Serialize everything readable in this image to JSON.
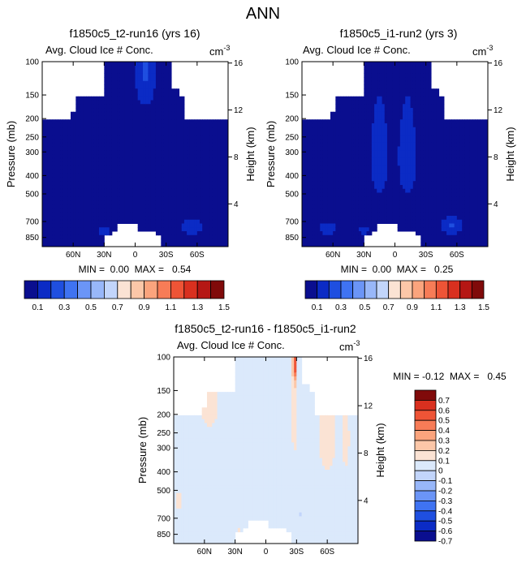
{
  "page": {
    "title": "ANN"
  },
  "colors": {
    "background_white": "#ffffff",
    "abs_scale": [
      "#0a0e8f",
      "#0b2bc5",
      "#1f4fe0",
      "#3f73f2",
      "#6b95f7",
      "#98b7f9",
      "#c2d5fb",
      "#fbe3d4",
      "#fcc7a8",
      "#fba47d",
      "#f77c57",
      "#ee5436",
      "#d9301f",
      "#b51714",
      "#800a0a"
    ],
    "diff_scale": [
      "#0a0e8f",
      "#0b2bc5",
      "#1f4fe0",
      "#3f73f2",
      "#6b95f7",
      "#98b7f9",
      "#c2d5fb",
      "#dbe9fb",
      "#fbe3d4",
      "#fcc7a8",
      "#fba47d",
      "#f77c57",
      "#ee5436",
      "#d9301f",
      "#800a0a"
    ]
  },
  "chart_data": [
    {
      "id": "panel-run16",
      "type": "heatmap",
      "title": "f1850c5_t2-run16 (yrs 16)",
      "subtitle": "Avg. Cloud Ice # Conc.",
      "unit_label": "cm",
      "unit_exp": "-3",
      "ylabel": "Pressure (mb)",
      "y2label": "Height (km)",
      "x_ticks": [
        "60N",
        "30N",
        "0",
        "30S",
        "60S"
      ],
      "x_tick_values": [
        60,
        30,
        0,
        -30,
        -60
      ],
      "xlim": [
        90,
        -90
      ],
      "y_ticks": [
        "100",
        "150",
        "200",
        "250",
        "300",
        "400",
        "500",
        "700",
        "850"
      ],
      "y_tick_values": [
        100,
        150,
        200,
        250,
        300,
        400,
        500,
        700,
        850
      ],
      "ylim": [
        100,
        950
      ],
      "y2_ticks": [
        "16",
        "12",
        "8",
        "4"
      ],
      "y2_tick_values": [
        16,
        12,
        8,
        4
      ],
      "stats_text": "MIN =  0.00  MAX =   0.54",
      "min": 0.0,
      "max": 0.54,
      "background_level": 0.05,
      "features": [
        {
          "lat": -10,
          "p": 105,
          "dlat": 9,
          "dp": 60,
          "value": 0.22
        },
        {
          "lat": -55,
          "p": 750,
          "dlat": 9,
          "dp": 70,
          "value": 0.2
        },
        {
          "lat": 30,
          "p": 780,
          "dlat": 5,
          "dp": 45,
          "value": 0.18
        }
      ],
      "legend_labels": [
        "0.1",
        "0.3",
        "0.5",
        "0.7",
        "0.9",
        "1.1",
        "1.3",
        "1.5"
      ]
    },
    {
      "id": "panel-run2",
      "type": "heatmap",
      "title": "f1850c5_i1-run2 (yrs 3)",
      "subtitle": "Avg. Cloud Ice # Conc.",
      "unit_label": "cm",
      "unit_exp": "-3",
      "ylabel": "Pressure (mb)",
      "y2label": "Height (km)",
      "x_ticks": [
        "60N",
        "30N",
        "0",
        "30S",
        "60S"
      ],
      "x_tick_values": [
        60,
        30,
        0,
        -30,
        -60
      ],
      "xlim": [
        90,
        -90
      ],
      "y_ticks": [
        "100",
        "150",
        "200",
        "250",
        "300",
        "400",
        "500",
        "700",
        "850"
      ],
      "y_tick_values": [
        100,
        150,
        200,
        250,
        300,
        400,
        500,
        700,
        850
      ],
      "ylim": [
        100,
        950
      ],
      "y2_ticks": [
        "16",
        "12",
        "8",
        "4"
      ],
      "y2_tick_values": [
        16,
        12,
        8,
        4
      ],
      "stats_text": "MIN =  0.00  MAX =   0.25",
      "min": 0.0,
      "max": 0.25,
      "background_level": 0.05,
      "features": [
        {
          "lat": 15,
          "p": 320,
          "dlat": 8,
          "dp": 160,
          "value": 0.2
        },
        {
          "lat": -12,
          "p": 320,
          "dlat": 8,
          "dp": 160,
          "value": 0.2
        },
        {
          "lat": -55,
          "p": 740,
          "dlat": 10,
          "dp": 70,
          "value": 0.22
        },
        {
          "lat": 65,
          "p": 760,
          "dlat": 9,
          "dp": 60,
          "value": 0.18
        },
        {
          "lat": 30,
          "p": 780,
          "dlat": 5,
          "dp": 45,
          "value": 0.16
        }
      ],
      "legend_labels": [
        "0.1",
        "0.3",
        "0.5",
        "0.7",
        "0.9",
        "1.1",
        "1.3",
        "1.5"
      ]
    },
    {
      "id": "panel-diff",
      "type": "heatmap",
      "title": "f1850c5_t2-run16 - f1850c5_i1-run2",
      "subtitle": "Avg. Cloud Ice # Conc.",
      "unit_label": "cm",
      "unit_exp": "-3",
      "ylabel": "Pressure (mb)",
      "y2label": "Height (km)",
      "x_ticks": [
        "60N",
        "30N",
        "0",
        "30S",
        "60S"
      ],
      "x_tick_values": [
        60,
        30,
        0,
        -30,
        -60
      ],
      "xlim": [
        90,
        -90
      ],
      "y_ticks": [
        "100",
        "150",
        "200",
        "250",
        "300",
        "400",
        "500",
        "700",
        "850"
      ],
      "y_tick_values": [
        100,
        150,
        200,
        250,
        300,
        400,
        500,
        700,
        850
      ],
      "ylim": [
        100,
        950
      ],
      "y2_ticks": [
        "16",
        "12",
        "8",
        "4"
      ],
      "y2_tick_values": [
        16,
        12,
        8,
        4
      ],
      "stats_text": "MIN = -0.12  MAX =   0.45",
      "min": -0.12,
      "max": 0.45,
      "background_level": -0.05,
      "features": [
        {
          "lat": -28,
          "p": 112,
          "dlat": 1.5,
          "dp": 22,
          "value": 0.55
        },
        {
          "lat": -28,
          "p": 180,
          "dlat": 3,
          "dp": 160,
          "value": 0.05
        },
        {
          "lat": 55,
          "p": 165,
          "dlat": 10,
          "dp": 80,
          "value": 0.05
        },
        {
          "lat": -60,
          "p": 260,
          "dlat": 10,
          "dp": 150,
          "value": 0.05
        },
        {
          "lat": -78,
          "p": 270,
          "dlat": 4,
          "dp": 120,
          "value": 0.05
        },
        {
          "lat": 85,
          "p": 560,
          "dlat": 3,
          "dp": 70,
          "value": 0.05
        },
        {
          "lat": 26,
          "p": 870,
          "dlat": 3,
          "dp": 80,
          "value": 0.05
        },
        {
          "lat": -34,
          "p": 680,
          "dlat": 3,
          "dp": 18,
          "value": -0.15
        }
      ],
      "legend_labels": [
        "0.7",
        "0.6",
        "0.5",
        "0.4",
        "0.3",
        "0.2",
        "0.1",
        "0",
        "-0.1",
        "-0.2",
        "-0.3",
        "-0.4",
        "-0.5",
        "-0.6",
        "-0.7"
      ]
    }
  ]
}
